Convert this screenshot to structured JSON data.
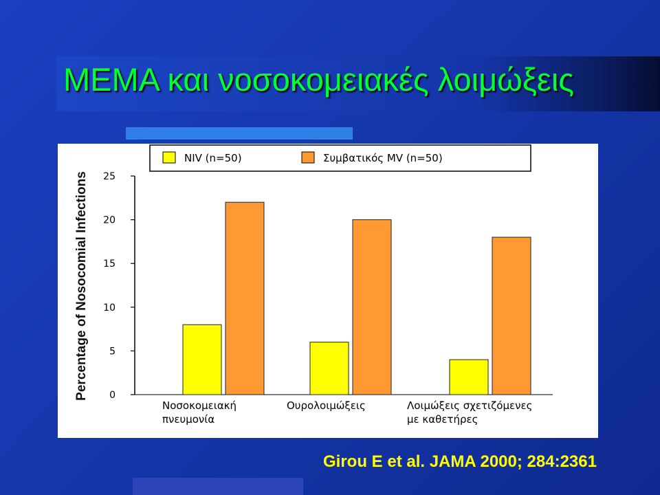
{
  "slide": {
    "title": "ΜΕΜΑ και νοσοκομειακές λοιμώξεις",
    "citation": "Girou E et al. JAMA 2000; 284:2361"
  },
  "colors": {
    "title_text": "#00ff33",
    "citation_text": "#ffff00",
    "niv_bar": "#ffff00",
    "mv_bar": "#ff9933"
  },
  "chart_data": {
    "type": "bar",
    "ylabel": "Percentage of Nosocomial Infections",
    "xlabel": "",
    "ylim": [
      0,
      25
    ],
    "yticks": [
      0,
      5,
      10,
      15,
      20,
      25
    ],
    "legend_position": "top",
    "categories": [
      [
        "Νοσοκομειακή",
        "πνευμονία"
      ],
      [
        "Ουρολοιμώξεις"
      ],
      [
        "Λοιμώξεις σχετιζόμενες",
        "με καθετήρες"
      ]
    ],
    "series": [
      {
        "name": "NIV (n=50)",
        "color": "#ffff00",
        "values": [
          8,
          6,
          4
        ]
      },
      {
        "name": "Συμβατικός MV (n=50)",
        "color": "#ff9933",
        "values": [
          22,
          20,
          18
        ]
      }
    ]
  }
}
